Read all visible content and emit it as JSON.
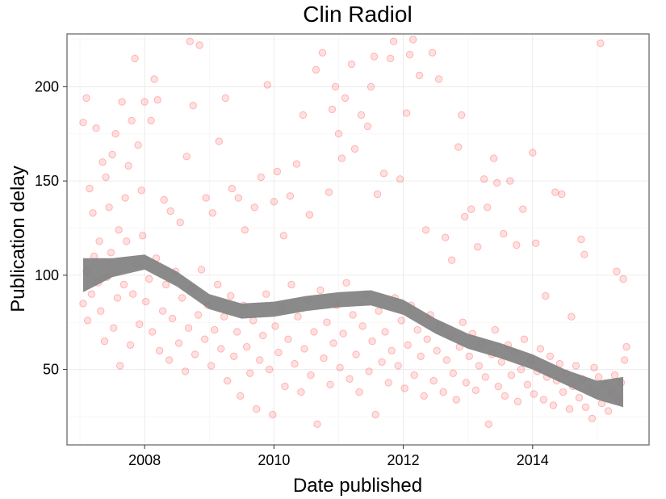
{
  "chart_data": {
    "type": "scatter",
    "title": "Clin Radiol",
    "xlabel": "Date published",
    "ylabel": "Publication delay",
    "xlim": [
      2006.8,
      2015.8
    ],
    "ylim": [
      10,
      228
    ],
    "x_ticks": [
      2008,
      2010,
      2012,
      2014
    ],
    "x_tick_labels": [
      "2008",
      "2010",
      "2012",
      "2014"
    ],
    "y_ticks": [
      50,
      100,
      150,
      200
    ],
    "y_tick_labels": [
      "50",
      "100",
      "150",
      "200"
    ],
    "grid": true,
    "legend": "none",
    "colors": {
      "points": "#ff0000",
      "smooth": "#808080",
      "panel_border": "#7f7f7f",
      "grid": "#ebebeb"
    },
    "points": [
      [
        2007.05,
        181
      ],
      [
        2007.1,
        194
      ],
      [
        2007.15,
        146
      ],
      [
        2007.2,
        133
      ],
      [
        2007.25,
        178
      ],
      [
        2007.3,
        118
      ],
      [
        2007.35,
        160
      ],
      [
        2007.4,
        152
      ],
      [
        2007.45,
        136
      ],
      [
        2007.5,
        164
      ],
      [
        2007.55,
        175
      ],
      [
        2007.6,
        124
      ],
      [
        2007.65,
        192
      ],
      [
        2007.7,
        141
      ],
      [
        2007.75,
        158
      ],
      [
        2007.8,
        182
      ],
      [
        2007.85,
        215
      ],
      [
        2007.9,
        169
      ],
      [
        2007.95,
        145
      ],
      [
        2008.0,
        192
      ],
      [
        2008.1,
        182
      ],
      [
        2008.15,
        204
      ],
      [
        2008.2,
        193
      ],
      [
        2008.3,
        140
      ],
      [
        2008.4,
        134
      ],
      [
        2008.55,
        128
      ],
      [
        2008.65,
        163
      ],
      [
        2008.7,
        224
      ],
      [
        2008.75,
        190
      ],
      [
        2008.85,
        222
      ],
      [
        2008.95,
        141
      ],
      [
        2009.05,
        133
      ],
      [
        2009.15,
        171
      ],
      [
        2009.25,
        194
      ],
      [
        2009.35,
        146
      ],
      [
        2009.45,
        141
      ],
      [
        2009.55,
        124
      ],
      [
        2009.7,
        136
      ],
      [
        2009.8,
        152
      ],
      [
        2009.9,
        201
      ],
      [
        2010.0,
        139
      ],
      [
        2010.05,
        155
      ],
      [
        2010.15,
        121
      ],
      [
        2010.25,
        142
      ],
      [
        2010.35,
        159
      ],
      [
        2010.45,
        185
      ],
      [
        2010.55,
        132
      ],
      [
        2010.65,
        209
      ],
      [
        2010.75,
        218
      ],
      [
        2010.85,
        144
      ],
      [
        2010.9,
        188
      ],
      [
        2010.95,
        200
      ],
      [
        2011.0,
        175
      ],
      [
        2011.05,
        162
      ],
      [
        2011.1,
        194
      ],
      [
        2011.2,
        212
      ],
      [
        2011.25,
        167
      ],
      [
        2011.35,
        185
      ],
      [
        2011.45,
        179
      ],
      [
        2011.5,
        200
      ],
      [
        2011.55,
        216
      ],
      [
        2011.6,
        143
      ],
      [
        2011.7,
        154
      ],
      [
        2011.8,
        215
      ],
      [
        2011.85,
        224
      ],
      [
        2011.95,
        151
      ],
      [
        2012.05,
        186
      ],
      [
        2012.1,
        217
      ],
      [
        2012.15,
        225
      ],
      [
        2012.25,
        206
      ],
      [
        2012.35,
        124
      ],
      [
        2012.45,
        218
      ],
      [
        2012.55,
        204
      ],
      [
        2012.65,
        120
      ],
      [
        2012.75,
        108
      ],
      [
        2012.85,
        168
      ],
      [
        2012.9,
        185
      ],
      [
        2012.95,
        131
      ],
      [
        2013.05,
        135
      ],
      [
        2013.15,
        115
      ],
      [
        2013.25,
        151
      ],
      [
        2013.3,
        136
      ],
      [
        2013.4,
        162
      ],
      [
        2013.45,
        149
      ],
      [
        2013.55,
        122
      ],
      [
        2013.65,
        150
      ],
      [
        2013.75,
        116
      ],
      [
        2013.85,
        135
      ],
      [
        2014.0,
        165
      ],
      [
        2014.05,
        117
      ],
      [
        2014.2,
        89
      ],
      [
        2014.35,
        144
      ],
      [
        2014.45,
        143
      ],
      [
        2014.6,
        78
      ],
      [
        2014.75,
        119
      ],
      [
        2014.8,
        111
      ],
      [
        2014.95,
        51
      ],
      [
        2015.05,
        223
      ],
      [
        2015.3,
        102
      ],
      [
        2015.4,
        98
      ],
      [
        2007.05,
        85
      ],
      [
        2007.1,
        102
      ],
      [
        2007.12,
        76
      ],
      [
        2007.18,
        90
      ],
      [
        2007.22,
        110
      ],
      [
        2007.28,
        96
      ],
      [
        2007.32,
        81
      ],
      [
        2007.38,
        65
      ],
      [
        2007.42,
        99
      ],
      [
        2007.48,
        112
      ],
      [
        2007.52,
        72
      ],
      [
        2007.58,
        88
      ],
      [
        2007.62,
        52
      ],
      [
        2007.68,
        95
      ],
      [
        2007.72,
        118
      ],
      [
        2007.78,
        63
      ],
      [
        2007.82,
        90
      ],
      [
        2007.88,
        106
      ],
      [
        2007.92,
        74
      ],
      [
        2007.97,
        121
      ],
      [
        2008.02,
        86
      ],
      [
        2008.07,
        98
      ],
      [
        2008.12,
        70
      ],
      [
        2008.18,
        109
      ],
      [
        2008.23,
        60
      ],
      [
        2008.28,
        81
      ],
      [
        2008.33,
        95
      ],
      [
        2008.38,
        55
      ],
      [
        2008.43,
        77
      ],
      [
        2008.48,
        102
      ],
      [
        2008.53,
        64
      ],
      [
        2008.58,
        88
      ],
      [
        2008.63,
        49
      ],
      [
        2008.68,
        72
      ],
      [
        2008.73,
        93
      ],
      [
        2008.78,
        58
      ],
      [
        2008.83,
        79
      ],
      [
        2008.88,
        103
      ],
      [
        2008.93,
        66
      ],
      [
        2008.98,
        84
      ],
      [
        2009.03,
        52
      ],
      [
        2009.08,
        71
      ],
      [
        2009.13,
        95
      ],
      [
        2009.18,
        61
      ],
      [
        2009.23,
        78
      ],
      [
        2009.28,
        44
      ],
      [
        2009.33,
        89
      ],
      [
        2009.38,
        57
      ],
      [
        2009.43,
        70
      ],
      [
        2009.48,
        36
      ],
      [
        2009.53,
        84
      ],
      [
        2009.58,
        62
      ],
      [
        2009.63,
        48
      ],
      [
        2009.68,
        76
      ],
      [
        2009.73,
        29
      ],
      [
        2009.78,
        55
      ],
      [
        2009.83,
        68
      ],
      [
        2009.88,
        90
      ],
      [
        2009.93,
        50
      ],
      [
        2009.98,
        26
      ],
      [
        2010.02,
        73
      ],
      [
        2010.07,
        59
      ],
      [
        2010.12,
        82
      ],
      [
        2010.17,
        41
      ],
      [
        2010.22,
        66
      ],
      [
        2010.27,
        95
      ],
      [
        2010.32,
        53
      ],
      [
        2010.37,
        78
      ],
      [
        2010.42,
        38
      ],
      [
        2010.47,
        61
      ],
      [
        2010.52,
        87
      ],
      [
        2010.57,
        47
      ],
      [
        2010.62,
        70
      ],
      [
        2010.67,
        21
      ],
      [
        2010.72,
        92
      ],
      [
        2010.77,
        56
      ],
      [
        2010.82,
        75
      ],
      [
        2010.87,
        42
      ],
      [
        2010.92,
        64
      ],
      [
        2010.97,
        84
      ],
      [
        2011.02,
        51
      ],
      [
        2011.07,
        69
      ],
      [
        2011.12,
        96
      ],
      [
        2011.17,
        45
      ],
      [
        2011.22,
        79
      ],
      [
        2011.27,
        58
      ],
      [
        2011.32,
        38
      ],
      [
        2011.37,
        73
      ],
      [
        2011.42,
        90
      ],
      [
        2011.47,
        49
      ],
      [
        2011.52,
        65
      ],
      [
        2011.57,
        26
      ],
      [
        2011.62,
        81
      ],
      [
        2011.67,
        54
      ],
      [
        2011.72,
        70
      ],
      [
        2011.77,
        43
      ],
      [
        2011.82,
        60
      ],
      [
        2011.87,
        88
      ],
      [
        2011.92,
        52
      ],
      [
        2011.97,
        76
      ],
      [
        2012.02,
        40
      ],
      [
        2012.07,
        63
      ],
      [
        2012.12,
        84
      ],
      [
        2012.17,
        47
      ],
      [
        2012.22,
        71
      ],
      [
        2012.27,
        57
      ],
      [
        2012.32,
        36
      ],
      [
        2012.37,
        66
      ],
      [
        2012.42,
        79
      ],
      [
        2012.47,
        44
      ],
      [
        2012.52,
        60
      ],
      [
        2012.57,
        73
      ],
      [
        2012.62,
        38
      ],
      [
        2012.67,
        55
      ],
      [
        2012.72,
        68
      ],
      [
        2012.77,
        48
      ],
      [
        2012.82,
        34
      ],
      [
        2012.87,
        62
      ],
      [
        2012.92,
        75
      ],
      [
        2012.97,
        43
      ],
      [
        2013.02,
        57
      ],
      [
        2013.07,
        69
      ],
      [
        2013.12,
        39
      ],
      [
        2013.17,
        52
      ],
      [
        2013.22,
        64
      ],
      [
        2013.27,
        46
      ],
      [
        2013.32,
        21
      ],
      [
        2013.37,
        58
      ],
      [
        2013.42,
        71
      ],
      [
        2013.47,
        41
      ],
      [
        2013.52,
        54
      ],
      [
        2013.57,
        36
      ],
      [
        2013.62,
        63
      ],
      [
        2013.67,
        47
      ],
      [
        2013.72,
        59
      ],
      [
        2013.77,
        33
      ],
      [
        2013.82,
        50
      ],
      [
        2013.87,
        66
      ],
      [
        2013.92,
        42
      ],
      [
        2013.97,
        55
      ],
      [
        2014.02,
        37
      ],
      [
        2014.07,
        49
      ],
      [
        2014.12,
        61
      ],
      [
        2014.17,
        34
      ],
      [
        2014.22,
        46
      ],
      [
        2014.27,
        57
      ],
      [
        2014.32,
        31
      ],
      [
        2014.37,
        44
      ],
      [
        2014.42,
        53
      ],
      [
        2014.47,
        38
      ],
      [
        2014.52,
        48
      ],
      [
        2014.57,
        29
      ],
      [
        2014.62,
        41
      ],
      [
        2014.67,
        52
      ],
      [
        2014.72,
        35
      ],
      [
        2014.77,
        45
      ],
      [
        2014.82,
        30
      ],
      [
        2014.87,
        40
      ],
      [
        2014.92,
        24
      ],
      [
        2014.97,
        37
      ],
      [
        2015.02,
        46
      ],
      [
        2015.07,
        32
      ],
      [
        2015.12,
        42
      ],
      [
        2015.17,
        28
      ],
      [
        2015.22,
        38
      ],
      [
        2015.27,
        47
      ],
      [
        2015.32,
        34
      ],
      [
        2015.37,
        43
      ],
      [
        2015.42,
        55
      ],
      [
        2015.45,
        62
      ]
    ],
    "smooth": {
      "x": [
        2007.05,
        2007.5,
        2008.0,
        2008.5,
        2009.0,
        2009.5,
        2010.0,
        2010.5,
        2011.0,
        2011.5,
        2012.0,
        2012.5,
        2013.0,
        2013.5,
        2014.0,
        2014.5,
        2015.0,
        2015.4
      ],
      "fit": [
        100,
        104,
        107,
        98,
        86,
        81,
        82,
        85,
        87,
        88,
        83,
        73,
        65,
        60,
        54,
        46,
        39,
        38
      ],
      "se": [
        9,
        5,
        4,
        4,
        4,
        4,
        4,
        4,
        4,
        4,
        4,
        4,
        4,
        4,
        4,
        4,
        5,
        8
      ]
    }
  }
}
